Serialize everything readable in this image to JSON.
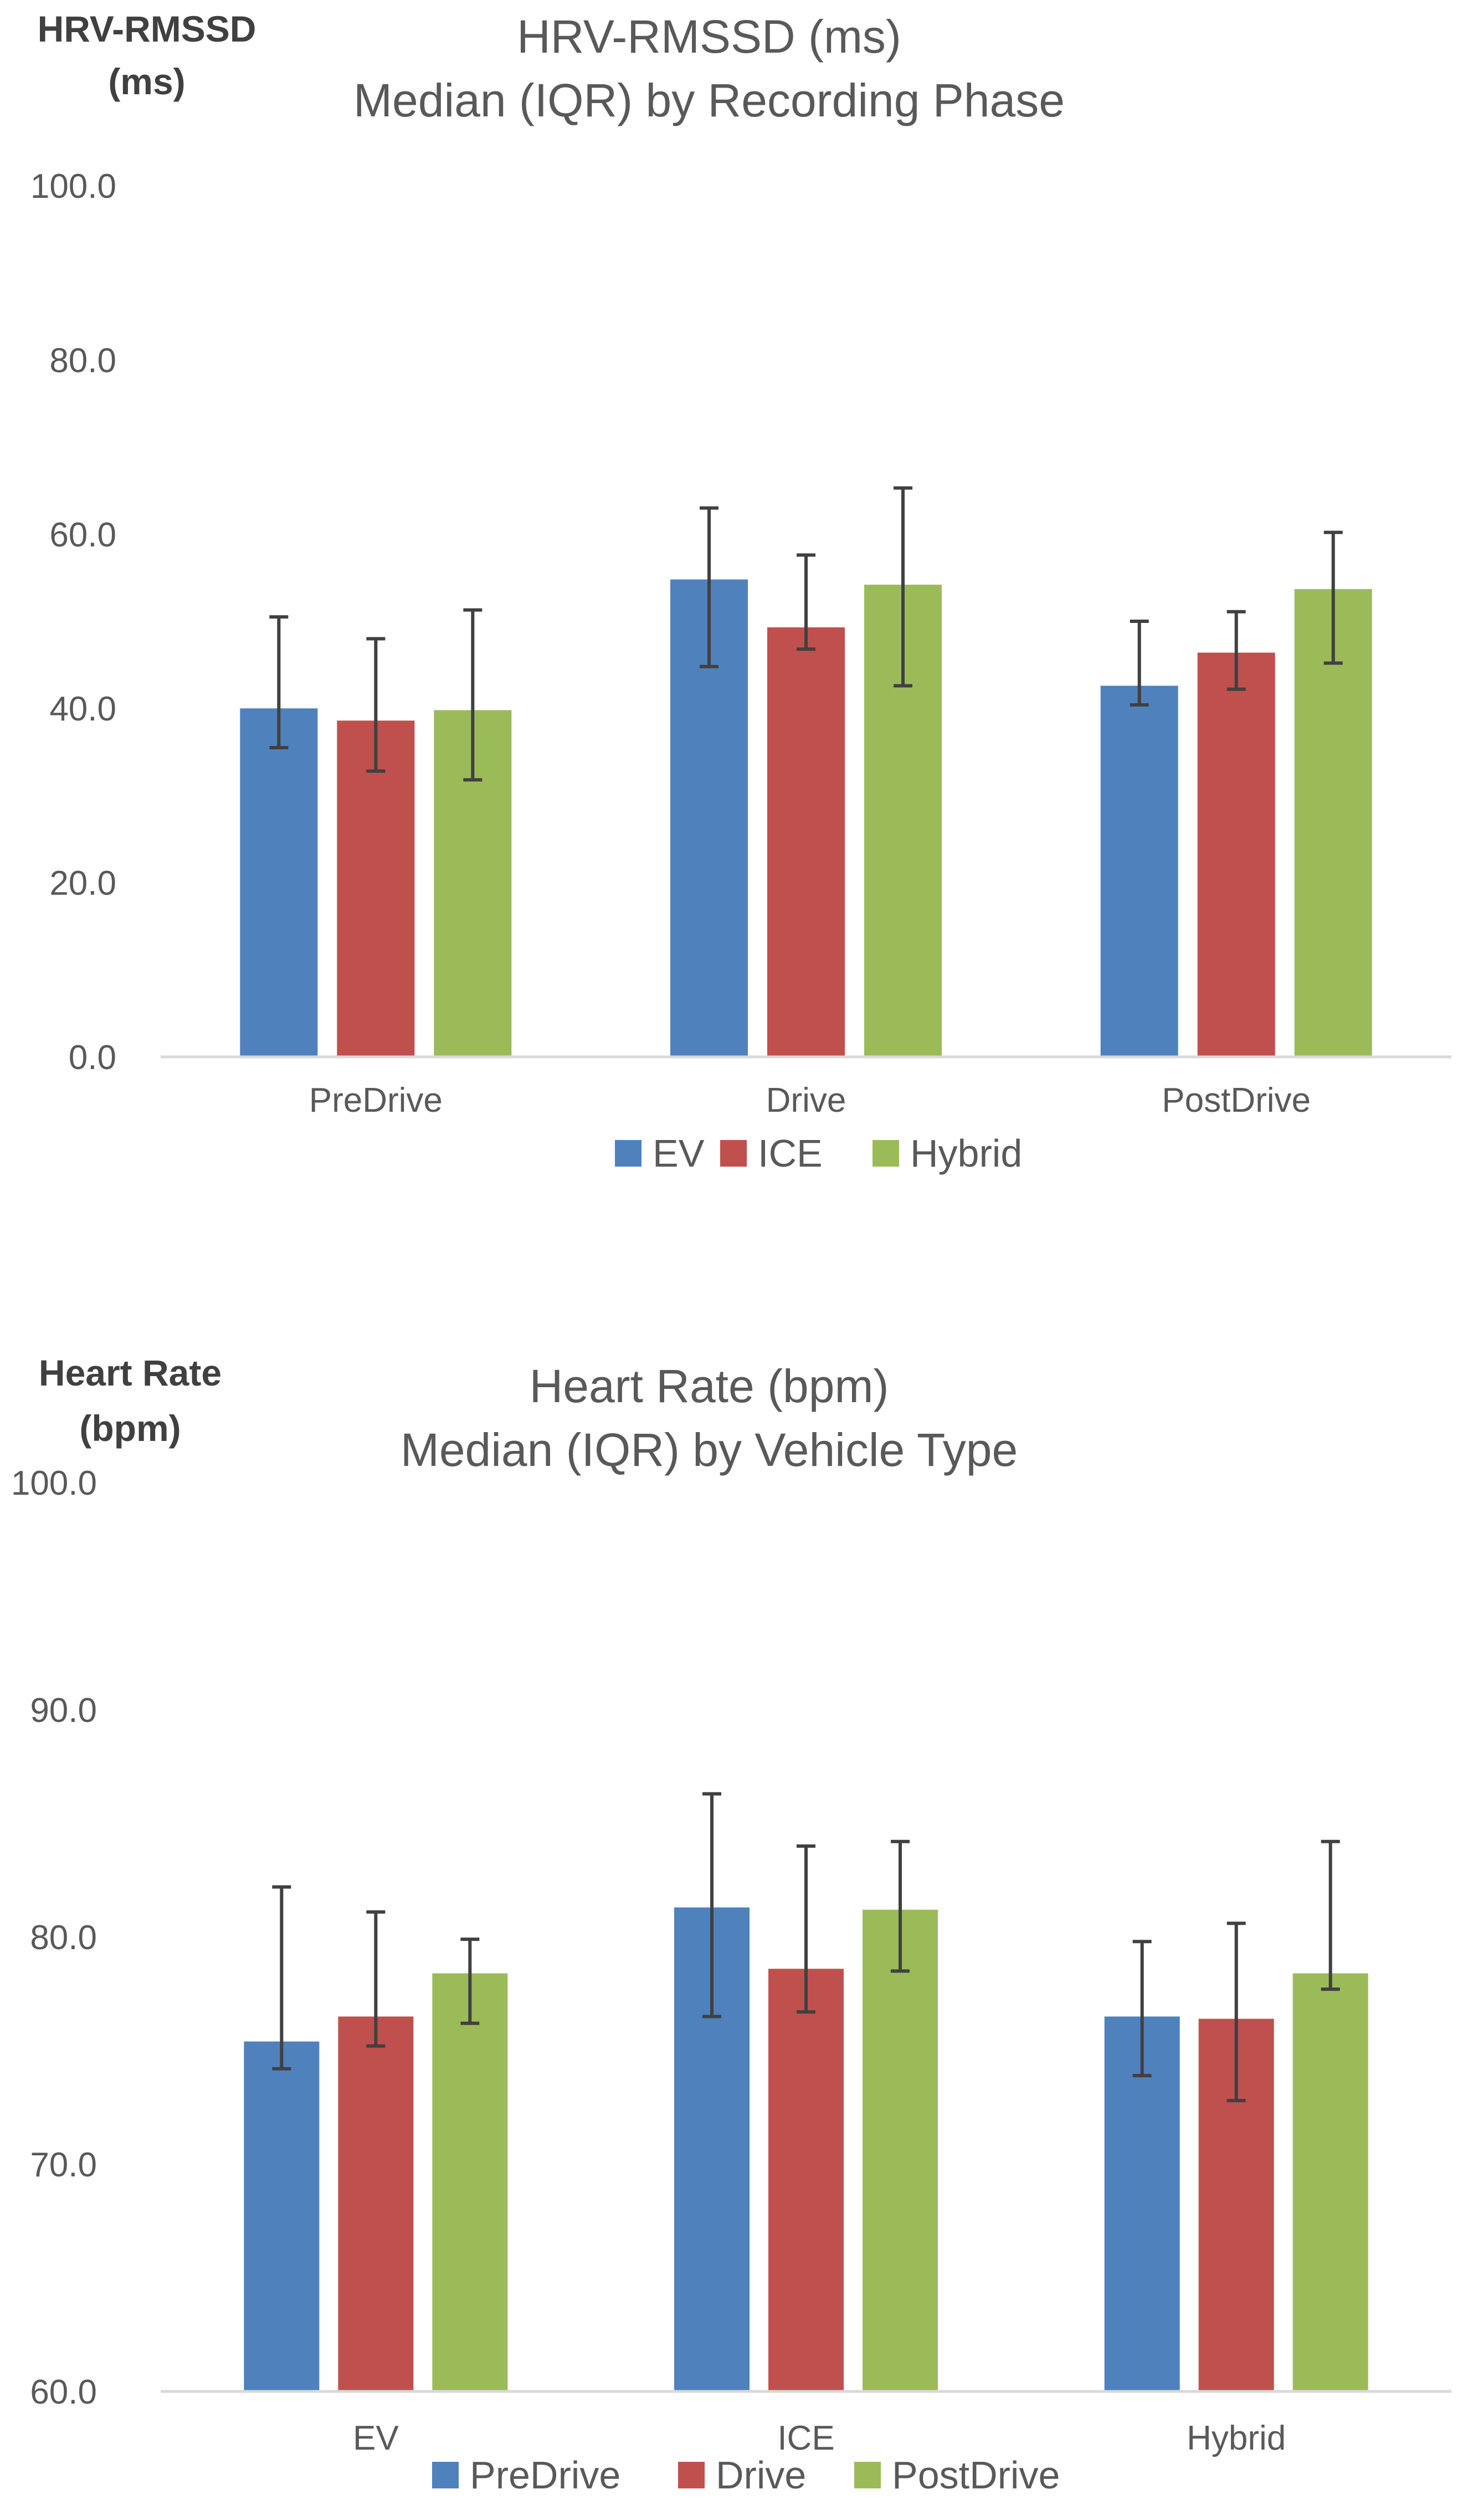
{
  "chart_data": [
    {
      "type": "bar",
      "title": "HRV-RMSSD (ms)",
      "subtitle": "Median (IQR) by Recording Phase",
      "ylabel": "HRV-RMSSD (ms)",
      "ylabel_lines": [
        "HRV-RMSSD",
        "(ms)"
      ],
      "ylim": [
        0,
        100
      ],
      "yticks": [
        0,
        20,
        40,
        60,
        80,
        100
      ],
      "ytick_labels": [
        "0.0",
        "20.0",
        "40.0",
        "60.0",
        "80.0",
        "100.0"
      ],
      "categories": [
        "PreDrive",
        "Drive",
        "PostDrive"
      ],
      "series": [
        {
          "name": "EV",
          "color": "#4F81BD",
          "values": [
            40.0,
            54.8,
            42.6
          ],
          "error_low": [
            35.5,
            44.8,
            40.4
          ],
          "error_high": [
            50.5,
            63.0,
            50.0
          ]
        },
        {
          "name": "ICE",
          "color": "#C0504D",
          "values": [
            38.6,
            49.3,
            46.4
          ],
          "error_low": [
            32.8,
            46.8,
            42.2
          ],
          "error_high": [
            48.0,
            57.6,
            51.1
          ]
        },
        {
          "name": "Hybrid",
          "color": "#9BBB59",
          "values": [
            39.8,
            54.2,
            53.7
          ],
          "error_low": [
            31.8,
            42.6,
            45.2
          ],
          "error_high": [
            51.3,
            65.3,
            60.2
          ]
        }
      ],
      "grid": false,
      "legend_position": "bottom"
    },
    {
      "type": "bar",
      "title": "Heart Rate (bpm)",
      "subtitle": "Median (IQR) by Vehicle Type",
      "ylabel": "Heart Rate (bpm)",
      "ylabel_lines": [
        "Heart Rate",
        "(bpm)"
      ],
      "ylim": [
        60,
        100
      ],
      "yticks": [
        60,
        70,
        80,
        90,
        100
      ],
      "ytick_labels": [
        "60.0",
        "70.0",
        "80.0",
        "90.0",
        "100.0"
      ],
      "categories": [
        "EV",
        "ICE",
        "Hybrid"
      ],
      "series": [
        {
          "name": "PreDrive",
          "color": "#4F81BD",
          "values": [
            75.4,
            81.3,
            76.5
          ],
          "error_low": [
            74.2,
            76.5,
            73.9
          ],
          "error_high": [
            82.2,
            86.3,
            79.8
          ]
        },
        {
          "name": "Drive",
          "color": "#C0504D",
          "values": [
            76.5,
            78.6,
            76.4
          ],
          "error_low": [
            75.2,
            76.7,
            72.8
          ],
          "error_high": [
            81.1,
            84.0,
            80.6
          ]
        },
        {
          "name": "PostDrive",
          "color": "#9BBB59",
          "values": [
            78.4,
            81.2,
            78.4
          ],
          "error_low": [
            76.2,
            78.5,
            77.7
          ],
          "error_high": [
            79.9,
            84.2,
            84.2
          ]
        }
      ],
      "grid": false,
      "legend_position": "bottom"
    }
  ]
}
